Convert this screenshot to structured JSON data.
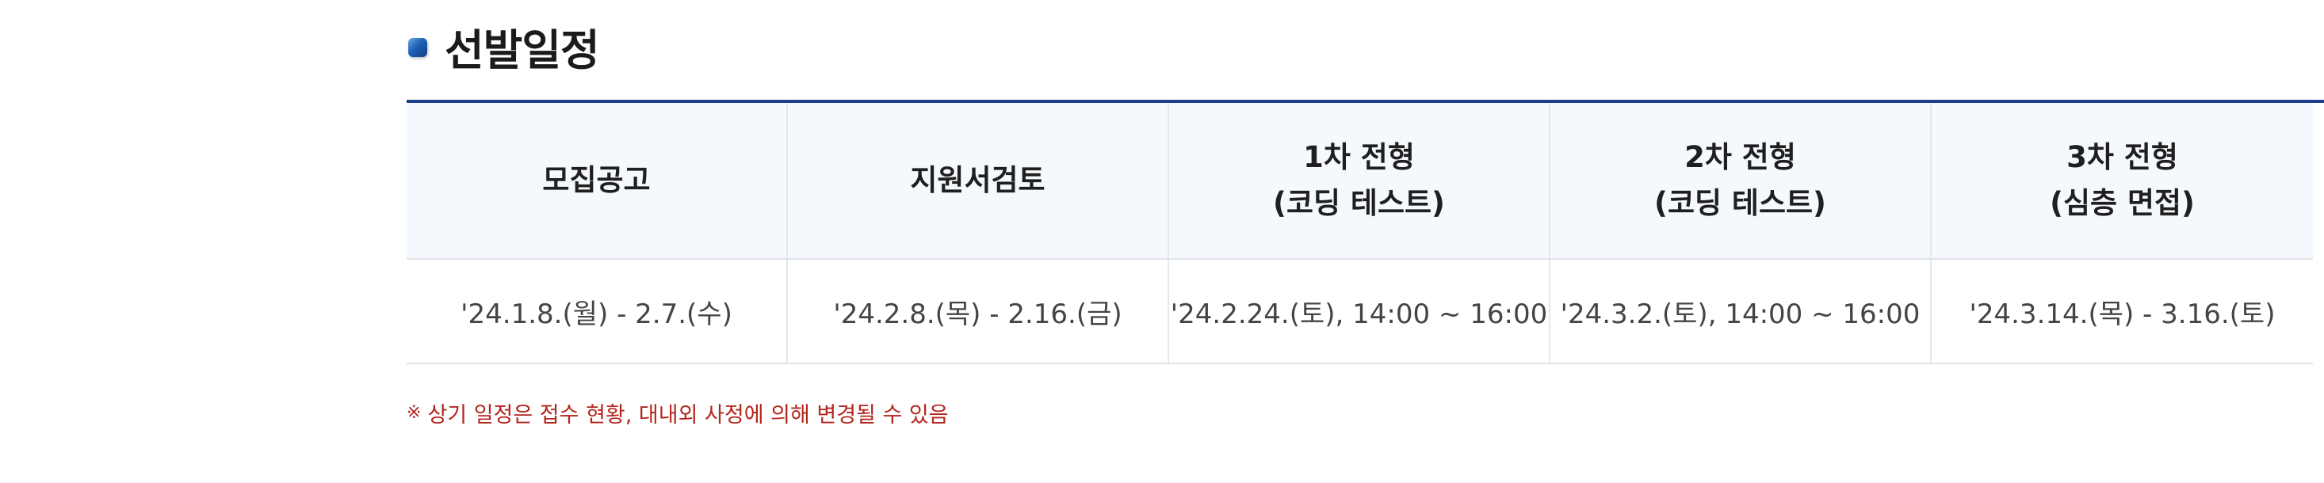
{
  "section": {
    "title": "선발일정"
  },
  "schedule": {
    "headers": [
      "모집공고",
      "지원서검토",
      "1차 전형\n(코딩 테스트)",
      "2차 전형\n(코딩 테스트)",
      "3차 전형\n(심층 면접)"
    ],
    "dates": [
      "'24.1.8.(월) - 2.7.(수)",
      "'24.2.8.(목) - 2.16.(금)",
      "'24.2.24.(토), 14:00 ~ 16:00",
      "'24.3.2.(토), 14:00 ~ 16:00",
      "'24.3.14.(목) - 3.16.(토)"
    ]
  },
  "note": {
    "mark": "※",
    "text": "상기 일정은 접수 현황, 대내외 사정에 의해 변경될 수 있음"
  },
  "colors": {
    "accent": "#1d3f8a",
    "header_bg": "#f5f9fd",
    "note": "#b3261e"
  }
}
